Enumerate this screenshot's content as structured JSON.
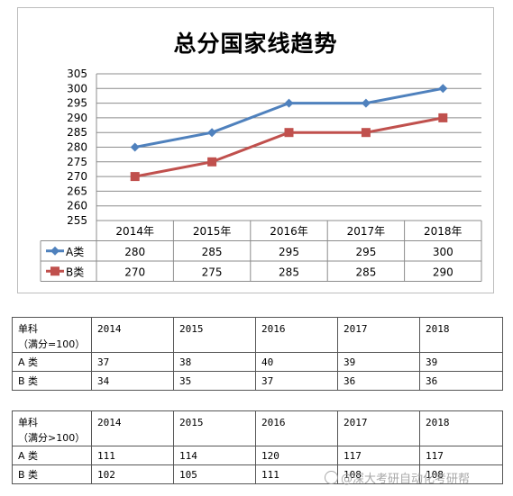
{
  "chart_data": {
    "type": "line",
    "title": "总分国家线趋势",
    "categories": [
      "2014年",
      "2015年",
      "2016年",
      "2017年",
      "2018年"
    ],
    "ylim": [
      255,
      305
    ],
    "yticks": [
      255,
      260,
      265,
      270,
      275,
      280,
      285,
      290,
      295,
      300,
      305
    ],
    "grid": true,
    "legend": "data table below plot",
    "series": [
      {
        "name": "A类",
        "values": [
          280,
          285,
          295,
          295,
          300
        ],
        "color": "#4f81bd",
        "marker": "diamond"
      },
      {
        "name": "B类",
        "values": [
          270,
          275,
          285,
          285,
          290
        ],
        "color": "#c0504d",
        "marker": "square"
      }
    ]
  },
  "table_top": {
    "label_line1": "单科",
    "label_line2": "（满分=100）",
    "years": [
      "2014",
      "2015",
      "2016",
      "2017",
      "2018"
    ],
    "rows": [
      {
        "label": "A 类",
        "values": [
          "37",
          "38",
          "40",
          "39",
          "39"
        ]
      },
      {
        "label": "B 类",
        "values": [
          "34",
          "35",
          "37",
          "36",
          "36"
        ]
      }
    ]
  },
  "table_bottom": {
    "label_line1": "单科",
    "label_line2": "（满分>100）",
    "years": [
      "2014",
      "2015",
      "2016",
      "2017",
      "2018"
    ],
    "rows": [
      {
        "label": "A 类",
        "values": [
          "111",
          "114",
          "120",
          "117",
          "117"
        ]
      },
      {
        "label": "B 类",
        "values": [
          "102",
          "105",
          "111",
          "108",
          "108"
        ]
      }
    ]
  },
  "watermark": "@深大考研自动化考研帮"
}
